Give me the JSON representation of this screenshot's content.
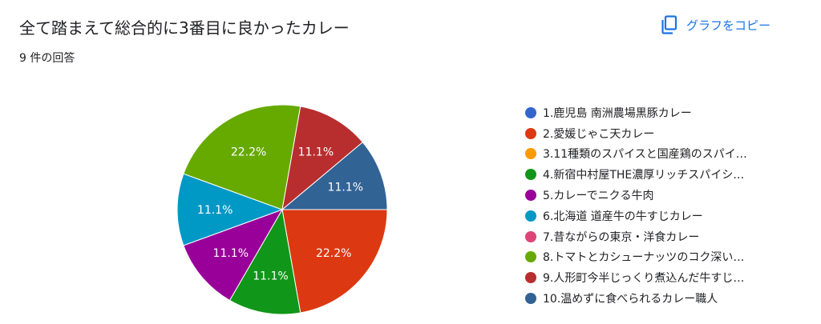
{
  "header": {
    "title": "全て踏まえて総合的に3番目に良かったカレー",
    "response_count": "9 件の回答",
    "copy_label": "グラフをコピー",
    "copy_icon": "copy-icon"
  },
  "chart_data": {
    "type": "pie",
    "legend_position": "right",
    "categories": [
      "1.鹿児島 南洲農場黒豚カレー",
      "2.愛媛じゃこ天カレー",
      "3.11種類のスパイスと国産鶏のスパイ…",
      "4.新宿中村屋THE濃厚リッチスパイシ…",
      "5.カレーでニクる牛肉",
      "6.北海道 道産牛の牛すじカレー",
      "7.昔ながらの東京・洋食カレー",
      "8.トマトとカシューナッツのコク深い…",
      "9.人形町今半じっくり煮込んだ牛すじ…",
      "10.温めずに食べられるカレー職人"
    ],
    "values": [
      0,
      2,
      0,
      1,
      1,
      1,
      0,
      2,
      1,
      1
    ],
    "labels": [
      "",
      "22.2%",
      "",
      "11.1%",
      "11.1%",
      "11.1%",
      "",
      "22.2%",
      "11.1%",
      "11.1%"
    ],
    "colors": [
      "#3366cc",
      "#dc3912",
      "#ff9900",
      "#109618",
      "#990099",
      "#0099c6",
      "#dd4477",
      "#66aa00",
      "#b82e2e",
      "#316395"
    ]
  }
}
